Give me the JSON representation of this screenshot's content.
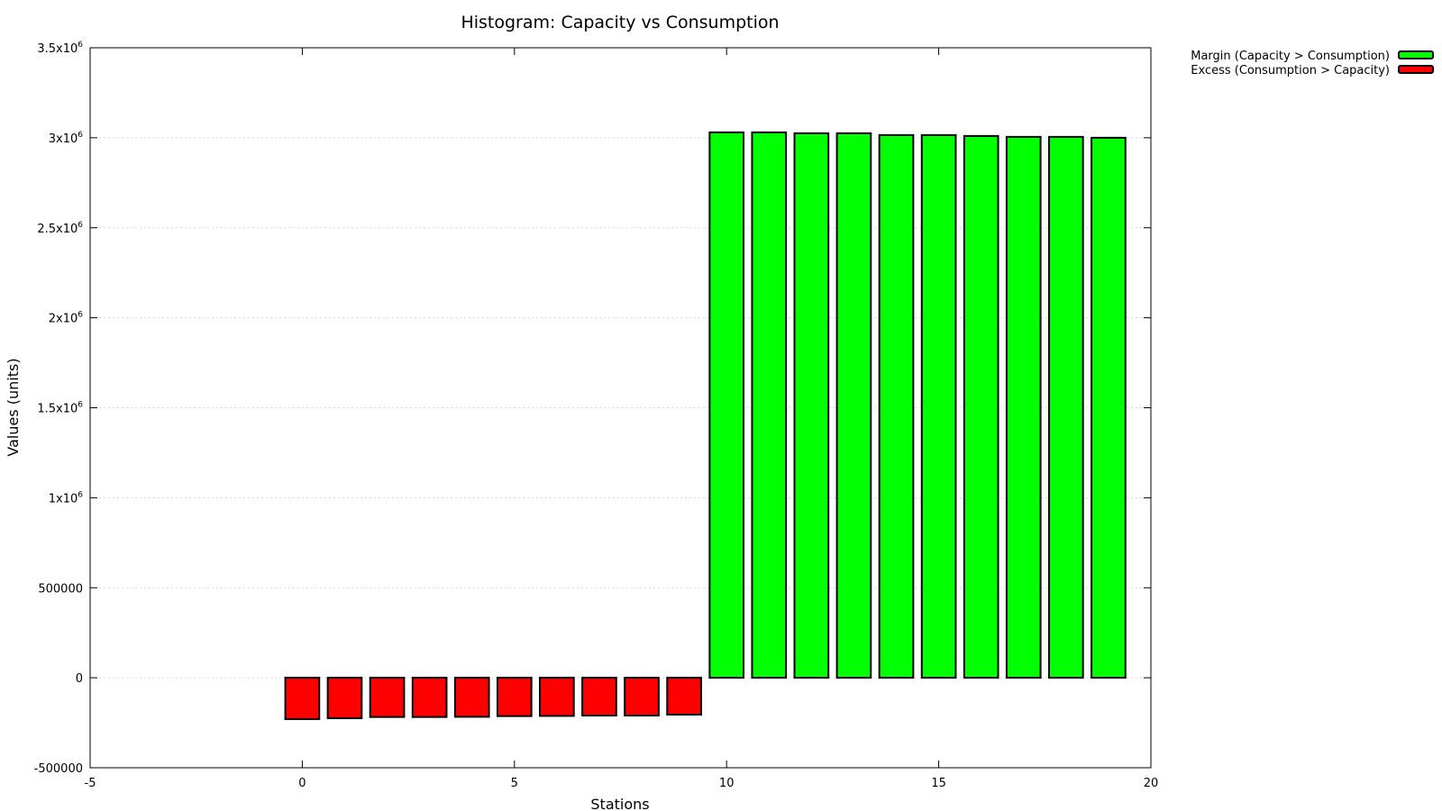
{
  "chart_data": {
    "type": "bar",
    "title": "Histogram: Capacity vs Consumption",
    "xlabel": "Stations",
    "ylabel": "Values (units)",
    "xlim": [
      -5,
      20
    ],
    "ylim": [
      -500000,
      3500000
    ],
    "grid": true,
    "legend_position": "outside-top-right",
    "x_ticks": [
      {
        "value": -5,
        "label": "-5"
      },
      {
        "value": 0,
        "label": "0"
      },
      {
        "value": 5,
        "label": "5"
      },
      {
        "value": 10,
        "label": "10"
      },
      {
        "value": 15,
        "label": "15"
      },
      {
        "value": 20,
        "label": "20"
      }
    ],
    "y_ticks": [
      {
        "value": -500000,
        "mantissa": "-500000",
        "exponent": ""
      },
      {
        "value": 0,
        "mantissa": "0",
        "exponent": ""
      },
      {
        "value": 500000,
        "mantissa": "500000",
        "exponent": ""
      },
      {
        "value": 1000000,
        "mantissa": "1x10",
        "exponent": "6"
      },
      {
        "value": 1500000,
        "mantissa": "1.5x10",
        "exponent": "6"
      },
      {
        "value": 2000000,
        "mantissa": "2x10",
        "exponent": "6"
      },
      {
        "value": 2500000,
        "mantissa": "2.5x10",
        "exponent": "6"
      },
      {
        "value": 3000000,
        "mantissa": "3x10",
        "exponent": "6"
      },
      {
        "value": 3500000,
        "mantissa": "3.5x10",
        "exponent": "6"
      }
    ],
    "series": [
      {
        "name": "Margin (Capacity > Consumption)",
        "color": "#00ff00",
        "x": [
          10,
          11,
          12,
          13,
          14,
          15,
          16,
          17,
          18,
          19
        ],
        "values": [
          3030000,
          3030000,
          3025000,
          3025000,
          3015000,
          3015000,
          3010000,
          3005000,
          3005000,
          3000000
        ]
      },
      {
        "name": "Excess (Consumption > Capacity)",
        "color": "#ff0000",
        "x": [
          0,
          1,
          2,
          3,
          4,
          5,
          6,
          7,
          8,
          9
        ],
        "values": [
          -230000,
          -225000,
          -218000,
          -218000,
          -217000,
          -213000,
          -212000,
          -210000,
          -210000,
          -205000
        ]
      }
    ]
  }
}
